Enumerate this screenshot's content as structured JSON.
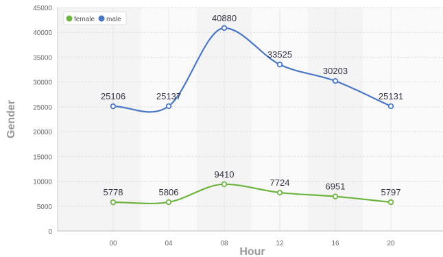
{
  "chart_data": {
    "type": "line",
    "xlabel": "Hour",
    "ylabel": "Gender",
    "categories": [
      "00",
      "04",
      "08",
      "12",
      "16",
      "20"
    ],
    "ylim": [
      0,
      45000
    ],
    "yticks": [
      0,
      5000,
      10000,
      15000,
      20000,
      25000,
      30000,
      35000,
      40000,
      45000
    ],
    "grid": true,
    "legend_position": "top-left",
    "series": [
      {
        "name": "female",
        "color": "#6db33f",
        "values": [
          5778,
          5806,
          9410,
          7724,
          6951,
          5797
        ]
      },
      {
        "name": "male",
        "color": "#4a77c4",
        "values": [
          25106,
          25137,
          40880,
          33525,
          30203,
          25131
        ]
      }
    ]
  }
}
